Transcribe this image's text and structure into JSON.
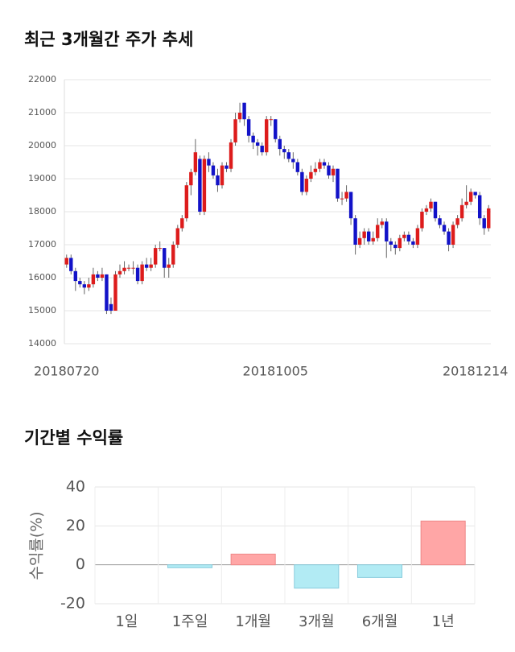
{
  "chart_data": [
    {
      "type": "candlestick",
      "title": "최근 3개월간 주가 추세",
      "categories": [
        "20180720",
        null,
        null,
        null,
        null,
        null,
        null,
        null,
        null,
        null,
        null,
        null,
        null,
        null,
        null,
        null,
        null,
        null,
        null,
        null,
        null,
        null,
        null,
        null,
        null,
        null,
        null,
        null,
        null,
        null,
        null,
        null,
        null,
        null,
        null,
        null,
        null,
        null,
        null,
        null,
        null,
        null,
        null,
        null,
        null,
        null,
        null,
        "20181005",
        null,
        null,
        null,
        null,
        null,
        null,
        null,
        null,
        null,
        null,
        null,
        null,
        null,
        null,
        null,
        null,
        null,
        null,
        null,
        null,
        null,
        null,
        null,
        null,
        null,
        null,
        null,
        null,
        null,
        null,
        null,
        null,
        null,
        null,
        null,
        null,
        null,
        null,
        null,
        null,
        null,
        null,
        null,
        null,
        "20181214",
        null,
        null,
        null
      ],
      "open": [
        16400,
        16600,
        16200,
        15900,
        15800,
        15700,
        15800,
        16100,
        16000,
        16100,
        15200,
        15000,
        16100,
        16200,
        16300,
        16300,
        16300,
        15900,
        16400,
        16300,
        16400,
        16900,
        16900,
        16300,
        16400,
        17000,
        17500,
        17800,
        18800,
        19200,
        19600,
        18000,
        19600,
        19400,
        19100,
        18800,
        19400,
        19300,
        20100,
        20800,
        21300,
        20800,
        20300,
        20100,
        20000,
        19800,
        20800,
        20800,
        20200,
        19900,
        19800,
        19600,
        19500,
        19200,
        18600,
        19000,
        19200,
        19300,
        19500,
        19400,
        19100,
        19300,
        18400,
        18400,
        18600,
        17800,
        17000,
        17200,
        17400,
        17100,
        17200,
        17600,
        17700,
        17100,
        17000,
        16900,
        17200,
        17300,
        17100,
        17000,
        17500,
        18000,
        18100,
        18300,
        17800,
        17600,
        17400,
        17000,
        17600,
        17800,
        18200,
        18300,
        18600,
        18500,
        17800,
        17500
      ],
      "high": [
        16700,
        16700,
        16300,
        16000,
        15900,
        16000,
        16300,
        16200,
        16300,
        16100,
        15400,
        16200,
        16400,
        16500,
        16400,
        16500,
        16400,
        16500,
        16600,
        16600,
        17000,
        17100,
        16900,
        16600,
        17100,
        17600,
        17900,
        18900,
        19300,
        20200,
        19700,
        19700,
        19800,
        19500,
        19300,
        19500,
        19500,
        20200,
        21000,
        21300,
        21300,
        20900,
        20400,
        20200,
        20100,
        20900,
        20900,
        20800,
        20300,
        20000,
        19900,
        19800,
        19600,
        19300,
        19100,
        19400,
        19500,
        19600,
        19600,
        19500,
        19400,
        19300,
        18600,
        18800,
        18600,
        17900,
        17400,
        17500,
        17500,
        17400,
        17800,
        17800,
        17800,
        17200,
        17100,
        17300,
        17400,
        17400,
        17200,
        17600,
        18100,
        18200,
        18400,
        18300,
        17900,
        17700,
        17500,
        17700,
        17900,
        18400,
        18800,
        18700,
        18600,
        18600,
        17900,
        18200
      ],
      "low": [
        16300,
        16100,
        15600,
        15700,
        15500,
        15600,
        15700,
        15900,
        15900,
        14900,
        14900,
        15000,
        16000,
        16100,
        16200,
        16100,
        15800,
        15800,
        16200,
        16200,
        16300,
        16800,
        16000,
        16000,
        16300,
        16900,
        17400,
        17700,
        18500,
        19100,
        17900,
        17900,
        19200,
        19000,
        18600,
        18700,
        19200,
        19200,
        20000,
        20700,
        20600,
        20100,
        19900,
        19700,
        19700,
        19700,
        20600,
        20100,
        19700,
        19600,
        19500,
        19300,
        19100,
        18500,
        18500,
        18900,
        19100,
        19200,
        19300,
        19000,
        18900,
        18300,
        18200,
        18300,
        17600,
        16700,
        16900,
        17000,
        17000,
        17000,
        17100,
        17500,
        16600,
        16800,
        16700,
        16800,
        17100,
        17000,
        16900,
        16900,
        17400,
        17900,
        18000,
        17700,
        17500,
        17300,
        16800,
        16900,
        17500,
        17700,
        18100,
        18200,
        18400,
        17600,
        17300,
        17400
      ],
      "close": [
        16600,
        16200,
        15900,
        15800,
        15700,
        15800,
        16100,
        16000,
        16100,
        15000,
        15000,
        16100,
        16200,
        16300,
        16300,
        16300,
        15900,
        16400,
        16300,
        16400,
        16900,
        16900,
        16300,
        16400,
        17000,
        17500,
        17800,
        18800,
        19200,
        19800,
        18000,
        19600,
        19400,
        19100,
        18800,
        19400,
        19300,
        20100,
        20800,
        21000,
        20800,
        20300,
        20100,
        20000,
        19800,
        20800,
        20800,
        20200,
        19900,
        19800,
        19600,
        19500,
        19200,
        18600,
        19000,
        19200,
        19300,
        19500,
        19400,
        19100,
        19300,
        18400,
        18400,
        18600,
        17800,
        17000,
        17200,
        17400,
        17100,
        17200,
        17600,
        17700,
        17100,
        17000,
        16900,
        17200,
        17300,
        17100,
        17000,
        17500,
        18000,
        18100,
        18300,
        17800,
        17600,
        17400,
        17000,
        17600,
        17800,
        18200,
        18300,
        18600,
        18500,
        17800,
        17500,
        18100
      ],
      "up_color": "#dd1c1c",
      "down_color": "#1212c8",
      "ylim": [
        14000,
        22000
      ],
      "yticks": [
        14000,
        15000,
        16000,
        17000,
        18000,
        19000,
        20000,
        21000,
        22000
      ],
      "grid": true
    },
    {
      "type": "bar",
      "title": "기간별 수익률",
      "ylabel": "수익률(%)",
      "categories": [
        "1일",
        "1주일",
        "1개월",
        "3개월",
        "6개월",
        "1년"
      ],
      "values": [
        0,
        -1.5,
        5.5,
        -12,
        -6.5,
        22.5
      ],
      "positive_color": "#ffa6a6",
      "negative_color": "#b2ebf4",
      "ylim": [
        -20,
        40
      ],
      "yticks": [
        40,
        20,
        0,
        -20
      ],
      "grid": true
    }
  ]
}
